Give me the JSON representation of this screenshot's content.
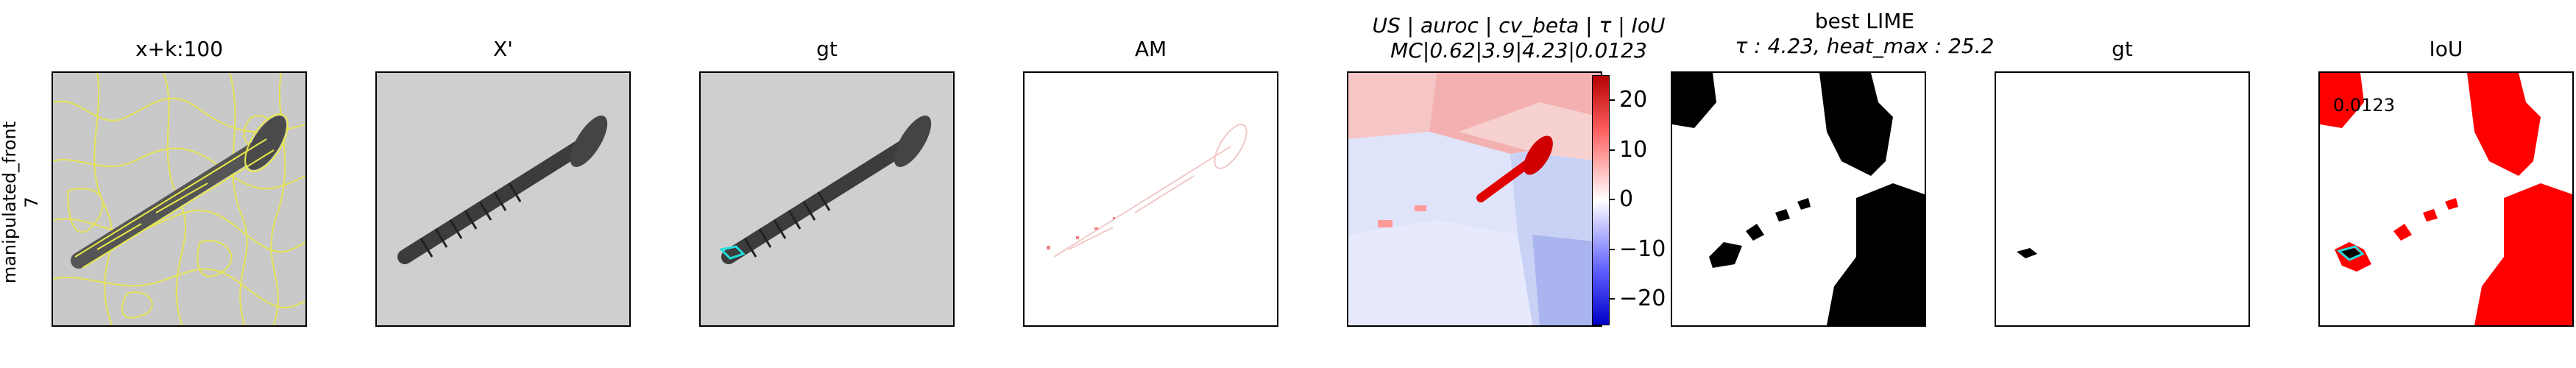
{
  "row_label": {
    "line1": "manipulated_front",
    "line2": "7"
  },
  "panels": [
    {
      "title": "x+k:100"
    },
    {
      "title": "X'"
    },
    {
      "title": "gt"
    },
    {
      "title": "AM"
    },
    {
      "title_line1": "US | auroc | cv_beta | τ | IoU",
      "title_line2": "MC|0.62|3.9|4.23|0.0123"
    },
    {
      "title_line1": "best LIME",
      "title_line2": "τ : 4.23, heat_max : 25.2"
    },
    {
      "title": "gt"
    },
    {
      "title": "IoU",
      "inner_value": "0.0123"
    }
  ],
  "colorbar": {
    "ticks": [
      "20",
      "10",
      "0",
      "−10",
      "−20"
    ]
  },
  "colors": {
    "heat_pos": "#ff0000",
    "heat_neg": "#0000ff",
    "contour": "#e8e84a",
    "gt": "#22dddd"
  }
}
